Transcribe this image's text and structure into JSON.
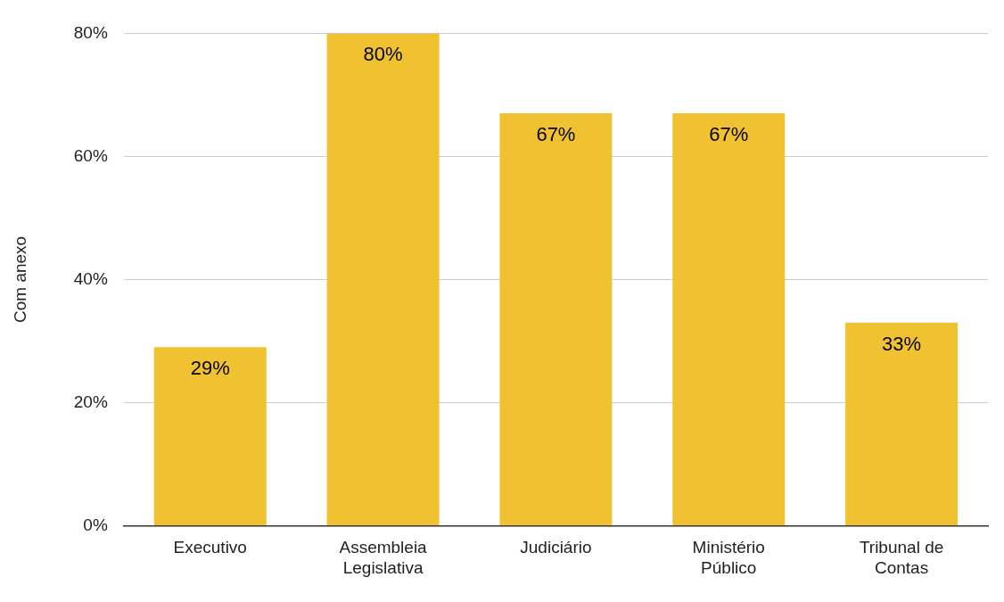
{
  "chart_data": {
    "type": "bar",
    "ylabel": "Com anexo",
    "categories": [
      "Executivo",
      "Assembleia Legislativa",
      "Judiciário",
      "Ministério Público",
      "Tribunal de Contas"
    ],
    "values": [
      29,
      80,
      67,
      67,
      33
    ],
    "value_labels": [
      "29%",
      "80%",
      "67%",
      "67%",
      "33%"
    ],
    "color": "#f0c232",
    "ylim": [
      0,
      80
    ],
    "yticks": [
      {
        "value": 0,
        "label": "0%"
      },
      {
        "value": 20,
        "label": "20%"
      },
      {
        "value": 40,
        "label": "40%"
      },
      {
        "value": 60,
        "label": "60%"
      },
      {
        "value": 80,
        "label": "80%"
      }
    ],
    "grid": "y",
    "legend": false
  }
}
